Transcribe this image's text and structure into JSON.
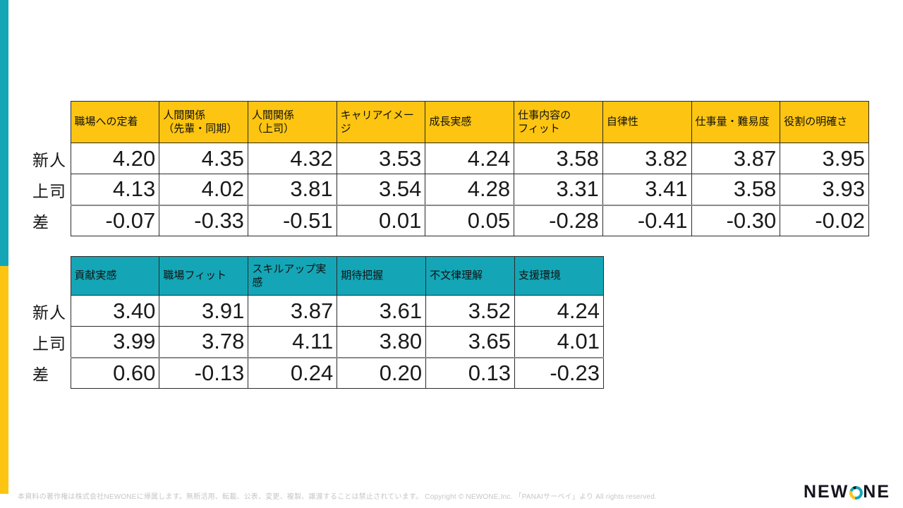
{
  "colors": {
    "teal": "#14A6B6",
    "yellow": "#FDC511",
    "border": "#2B2B2B"
  },
  "chart_data": [
    {
      "type": "table",
      "title": "",
      "header_bg": "#FDC511",
      "columns": [
        "職場への定着",
        "人間関係\n（先輩・同期）",
        "人間関係\n（上司）",
        "キャリアイメージ",
        "成長実感",
        "仕事内容の\nフィット",
        "自律性",
        "仕事量・難易度",
        "役割の明確さ"
      ],
      "rows": [
        {
          "label": "新人",
          "values": [
            "4.20",
            "4.35",
            "4.32",
            "3.53",
            "4.24",
            "3.58",
            "3.82",
            "3.87",
            "3.95"
          ]
        },
        {
          "label": "上司",
          "values": [
            "4.13",
            "4.02",
            "3.81",
            "3.54",
            "4.28",
            "3.31",
            "3.41",
            "3.58",
            "3.93"
          ]
        },
        {
          "label": "差",
          "values": [
            "-0.07",
            "-0.33",
            "-0.51",
            "0.01",
            "0.05",
            "-0.28",
            "-0.41",
            "-0.30",
            "-0.02"
          ]
        }
      ]
    },
    {
      "type": "table",
      "title": "",
      "header_bg": "#14A6B6",
      "columns": [
        "貢献実感",
        "職場フィット",
        "スキルアップ実感",
        "期待把握",
        "不文律理解",
        "支援環境"
      ],
      "rows": [
        {
          "label": "新人",
          "values": [
            "3.40",
            "3.91",
            "3.87",
            "3.61",
            "3.52",
            "4.24"
          ]
        },
        {
          "label": "上司",
          "values": [
            "3.99",
            "3.78",
            "4.11",
            "3.80",
            "3.65",
            "4.01"
          ]
        },
        {
          "label": "差",
          "values": [
            "0.60",
            "-0.13",
            "0.24",
            "0.20",
            "0.13",
            "-0.23"
          ]
        }
      ]
    }
  ],
  "footer": {
    "copyright": "本資料の著作権は株式会社NEWONEに帰属します。無断活用、転載、公表、変更、複製、譲渡することは禁止されています。 Copyright © NEWONE,Inc. 「PANAIサーベイ」より All rights reserved."
  },
  "logo": {
    "pre": "NEW",
    "post": "NE"
  }
}
